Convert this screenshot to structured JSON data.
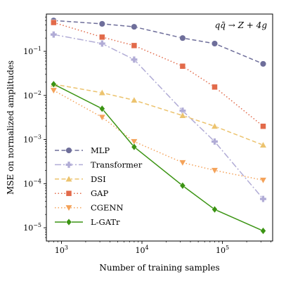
{
  "chart_data": {
    "type": "line",
    "title": "",
    "annotation": "qq̄ → Z + 4g",
    "xlabel": "Number of training samples",
    "ylabel": "MSE on normalized amplitudes",
    "xscale": "log",
    "yscale": "log",
    "xlim": [
      650,
      420000
    ],
    "ylim": [
      5e-06,
      0.7
    ],
    "x_ticks": [
      {
        "value": 1000,
        "base": "10",
        "exp": "3"
      },
      {
        "value": 10000,
        "base": "10",
        "exp": "4"
      },
      {
        "value": 100000,
        "base": "10",
        "exp": "5"
      }
    ],
    "y_ticks": [
      {
        "value": 1e-05,
        "base": "10",
        "exp": "−5"
      },
      {
        "value": 0.0001,
        "base": "10",
        "exp": "−4"
      },
      {
        "value": 0.001,
        "base": "10",
        "exp": "−3"
      },
      {
        "value": 0.01,
        "base": "10",
        "exp": "−2"
      },
      {
        "value": 0.1,
        "base": "10",
        "exp": "−1"
      }
    ],
    "grid": false,
    "legend_position": "lower-left",
    "x": [
      800,
      3200,
      8000,
      32000,
      80000,
      320000
    ],
    "series": [
      {
        "name": "MLP",
        "values": [
          0.5,
          0.42,
          0.36,
          0.2,
          0.15,
          0.052
        ],
        "color": "#6e6e9a",
        "dash": "6,3.5",
        "marker": "circle"
      },
      {
        "name": "Transformer",
        "values": [
          0.24,
          0.15,
          0.065,
          0.0045,
          0.0009,
          4.5e-05
        ],
        "color": "#b1acd6",
        "dash": "9,3,2,3",
        "marker": "plus"
      },
      {
        "name": "DSI",
        "values": [
          0.018,
          0.0115,
          0.0078,
          0.0035,
          0.002,
          0.00075
        ],
        "color": "#ecc36e",
        "dash": "6,3.5",
        "marker": "triangle-up"
      },
      {
        "name": "GAP",
        "values": [
          0.45,
          0.21,
          0.135,
          0.046,
          0.0155,
          0.002
        ],
        "color": "#e26a4a",
        "dash": "1.5,3",
        "marker": "square"
      },
      {
        "name": "CGENN",
        "values": [
          0.013,
          0.0032,
          0.0009,
          0.0003,
          0.0002,
          0.00012
        ],
        "color": "#f4a259",
        "dash": "1.5,3",
        "marker": "triangle-down"
      },
      {
        "name": "L-GATr",
        "values": [
          0.018,
          0.005,
          0.00068,
          9e-05,
          2.6e-05,
          8.5e-06
        ],
        "color": "#3b9413",
        "dash": "",
        "marker": "diamond"
      }
    ]
  }
}
